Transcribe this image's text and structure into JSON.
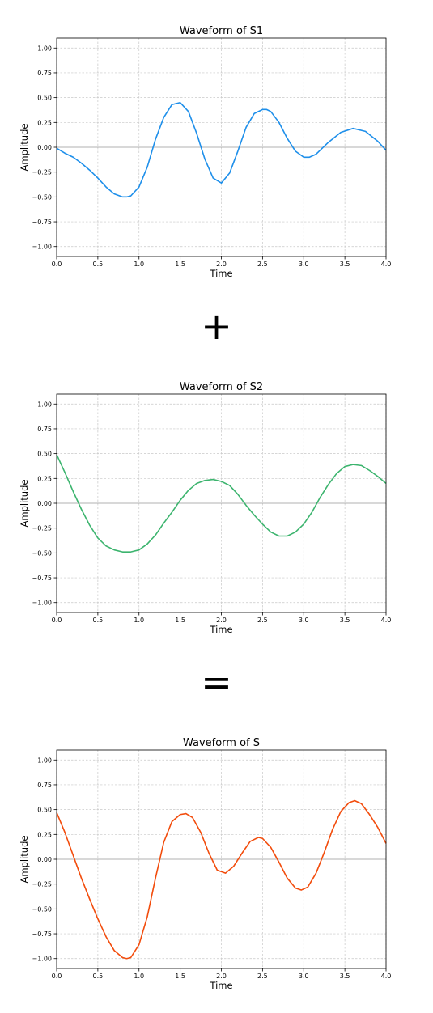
{
  "operators": {
    "plus": "+",
    "equals": "="
  },
  "chart_data": [
    {
      "type": "line",
      "title": "Waveform of S1",
      "xlabel": "Time",
      "ylabel": "Amplitude",
      "xlim": [
        0,
        4
      ],
      "ylim": [
        -1.1,
        1.1
      ],
      "xticks": [
        0.0,
        0.5,
        1.0,
        1.5,
        2.0,
        2.5,
        3.0,
        3.5,
        4.0
      ],
      "xtick_labels": [
        "0.0",
        "0.5",
        "1.0",
        "1.5",
        "2.0",
        "2.5",
        "3.0",
        "3.5",
        "4.0"
      ],
      "yticks": [
        1.0,
        0.75,
        0.5,
        0.25,
        0.0,
        -0.25,
        -0.5,
        -0.75,
        -1.0
      ],
      "ytick_labels": [
        "1.00",
        "0.75",
        "0.50",
        "0.25",
        "0.00",
        "−0.25",
        "−0.50",
        "−0.75",
        "−1.00"
      ],
      "grid": true,
      "color": "#1e8fea",
      "x": [
        0.0,
        0.1,
        0.2,
        0.3,
        0.4,
        0.5,
        0.6,
        0.7,
        0.8,
        0.85,
        0.9,
        1.0,
        1.1,
        1.2,
        1.3,
        1.4,
        1.5,
        1.6,
        1.7,
        1.8,
        1.9,
        2.0,
        2.1,
        2.2,
        2.3,
        2.4,
        2.5,
        2.55,
        2.6,
        2.7,
        2.8,
        2.9,
        3.0,
        3.07,
        3.15,
        3.3,
        3.45,
        3.6,
        3.75,
        3.9,
        4.0
      ],
      "y": [
        -0.01,
        -0.06,
        -0.1,
        -0.16,
        -0.23,
        -0.31,
        -0.4,
        -0.47,
        -0.5,
        -0.5,
        -0.49,
        -0.4,
        -0.2,
        0.08,
        0.3,
        0.43,
        0.45,
        0.36,
        0.14,
        -0.12,
        -0.31,
        -0.36,
        -0.26,
        -0.04,
        0.2,
        0.34,
        0.38,
        0.38,
        0.36,
        0.25,
        0.09,
        -0.04,
        -0.1,
        -0.1,
        -0.07,
        0.05,
        0.15,
        0.19,
        0.16,
        0.06,
        -0.03
      ]
    },
    {
      "type": "line",
      "title": "Waveform of S2",
      "xlabel": "Time",
      "ylabel": "Amplitude",
      "xlim": [
        0,
        4
      ],
      "ylim": [
        -1.1,
        1.1
      ],
      "xticks": [
        0.0,
        0.5,
        1.0,
        1.5,
        2.0,
        2.5,
        3.0,
        3.5,
        4.0
      ],
      "xtick_labels": [
        "0.0",
        "0.5",
        "1.0",
        "1.5",
        "2.0",
        "2.5",
        "3.0",
        "3.5",
        "4.0"
      ],
      "yticks": [
        1.0,
        0.75,
        0.5,
        0.25,
        0.0,
        -0.25,
        -0.5,
        -0.75,
        -1.0
      ],
      "ytick_labels": [
        "1.00",
        "0.75",
        "0.50",
        "0.25",
        "0.00",
        "−0.25",
        "−0.50",
        "−0.75",
        "−1.00"
      ],
      "grid": true,
      "color": "#3cb46e",
      "x": [
        0.0,
        0.1,
        0.2,
        0.3,
        0.4,
        0.5,
        0.6,
        0.7,
        0.8,
        0.9,
        1.0,
        1.1,
        1.2,
        1.3,
        1.4,
        1.5,
        1.6,
        1.7,
        1.8,
        1.9,
        2.0,
        2.1,
        2.2,
        2.3,
        2.4,
        2.5,
        2.6,
        2.7,
        2.8,
        2.9,
        3.0,
        3.1,
        3.2,
        3.3,
        3.4,
        3.5,
        3.6,
        3.7,
        3.8,
        3.9,
        4.0
      ],
      "y": [
        0.49,
        0.31,
        0.12,
        -0.06,
        -0.22,
        -0.35,
        -0.43,
        -0.47,
        -0.49,
        -0.49,
        -0.47,
        -0.41,
        -0.32,
        -0.2,
        -0.09,
        0.03,
        0.13,
        0.2,
        0.23,
        0.24,
        0.22,
        0.18,
        0.09,
        -0.02,
        -0.12,
        -0.21,
        -0.29,
        -0.33,
        -0.33,
        -0.29,
        -0.21,
        -0.09,
        0.06,
        0.19,
        0.3,
        0.37,
        0.39,
        0.38,
        0.33,
        0.27,
        0.2
      ]
    },
    {
      "type": "line",
      "title": "Waveform of S",
      "xlabel": "Time",
      "ylabel": "Amplitude",
      "xlim": [
        0,
        4
      ],
      "ylim": [
        -1.1,
        1.1
      ],
      "xticks": [
        0.0,
        0.5,
        1.0,
        1.5,
        2.0,
        2.5,
        3.0,
        3.5,
        4.0
      ],
      "xtick_labels": [
        "0.0",
        "0.5",
        "1.0",
        "1.5",
        "2.0",
        "2.5",
        "3.0",
        "3.5",
        "4.0"
      ],
      "yticks": [
        1.0,
        0.75,
        0.5,
        0.25,
        0.0,
        -0.25,
        -0.5,
        -0.75,
        -1.0
      ],
      "ytick_labels": [
        "1.00",
        "0.75",
        "0.50",
        "0.25",
        "0.00",
        "−0.25",
        "−0.50",
        "−0.75",
        "−1.00"
      ],
      "grid": true,
      "color": "#f24c0c",
      "x": [
        0.0,
        0.1,
        0.2,
        0.3,
        0.4,
        0.5,
        0.6,
        0.7,
        0.8,
        0.85,
        0.9,
        1.0,
        1.1,
        1.2,
        1.3,
        1.4,
        1.5,
        1.57,
        1.65,
        1.75,
        1.85,
        1.95,
        2.05,
        2.15,
        2.25,
        2.35,
        2.45,
        2.5,
        2.6,
        2.7,
        2.8,
        2.9,
        2.97,
        3.05,
        3.15,
        3.25,
        3.35,
        3.45,
        3.55,
        3.62,
        3.7,
        3.8,
        3.9,
        4.0
      ],
      "y": [
        0.47,
        0.27,
        0.04,
        -0.19,
        -0.4,
        -0.6,
        -0.78,
        -0.92,
        -0.99,
        -1.0,
        -0.99,
        -0.86,
        -0.58,
        -0.19,
        0.17,
        0.38,
        0.45,
        0.46,
        0.42,
        0.27,
        0.06,
        -0.11,
        -0.14,
        -0.07,
        0.06,
        0.18,
        0.22,
        0.21,
        0.12,
        -0.03,
        -0.19,
        -0.29,
        -0.31,
        -0.28,
        -0.14,
        0.07,
        0.3,
        0.48,
        0.57,
        0.59,
        0.56,
        0.45,
        0.32,
        0.16
      ]
    }
  ]
}
